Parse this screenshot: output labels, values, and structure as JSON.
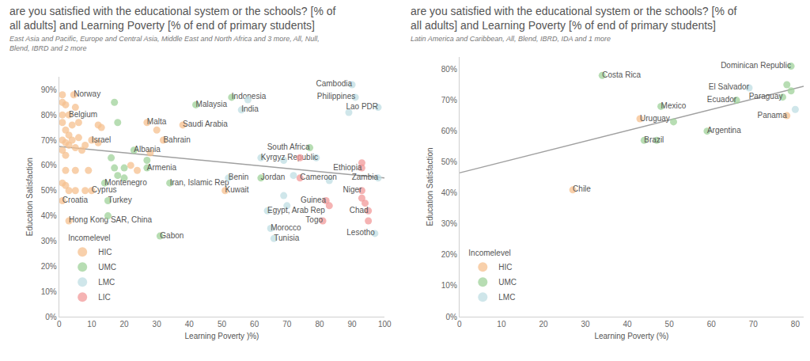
{
  "chart_data": [
    {
      "type": "scatter",
      "title": "are you satisfied with the educational system or the schools? [% of\nall adults] and Learning Poverty [% of end of primary students]",
      "subtitle": "East Asia and Pacific, Europe and Central Asia, Middle East and North Africa and 3 more, All, Null,\nBlend, IBRD and 2 more",
      "x_label": "Learning Poverty )%)",
      "y_label": "Education Satisfaction",
      "xlim": [
        0,
        100
      ],
      "xticks": [
        0,
        10,
        20,
        30,
        40,
        50,
        60,
        70,
        80,
        90,
        100
      ],
      "ylim": [
        0,
        95
      ],
      "yticks": [
        {
          "value": 0,
          "label": "0%"
        },
        {
          "value": 10,
          "label": "10%"
        },
        {
          "value": 20,
          "label": "20%"
        },
        {
          "value": 30,
          "label": "30%"
        },
        {
          "value": 40,
          "label": "40%"
        },
        {
          "value": 50,
          "label": "50%"
        },
        {
          "value": 60,
          "label": "60%"
        },
        {
          "value": 70,
          "label": "70%"
        },
        {
          "value": 80,
          "label": "80%"
        },
        {
          "value": 90,
          "label": "90%"
        }
      ],
      "grid": false,
      "marker": "circle",
      "legend": "bottom left",
      "legend_title": "Incomelevel",
      "series": [
        {
          "name": "HIC",
          "color": "#f5c08f",
          "x": [
            4.5,
            1,
            2,
            5,
            1,
            1,
            4,
            3,
            1,
            6,
            2,
            3,
            1,
            2,
            3,
            4,
            5,
            6,
            7,
            8,
            10,
            12,
            12,
            13,
            1,
            2,
            2,
            5,
            9,
            1,
            2,
            3,
            8,
            5,
            10,
            1,
            3,
            27,
            22,
            24,
            32,
            30,
            38,
            28,
            51
          ],
          "values": [
            88,
            88,
            84,
            83,
            80,
            77,
            76,
            80,
            85,
            77,
            74,
            72,
            70,
            69,
            68,
            70,
            67,
            71,
            66,
            68,
            70,
            69,
            76,
            75,
            66,
            64,
            58,
            58,
            58,
            53,
            52,
            50,
            50,
            50,
            50,
            46,
            38,
            77,
            60,
            58,
            70,
            74,
            76,
            65,
            50
          ],
          "labels": [
            "Norway",
            null,
            null,
            null,
            null,
            null,
            null,
            "Belgium",
            null,
            null,
            null,
            null,
            null,
            null,
            null,
            null,
            null,
            null,
            null,
            null,
            "Israel",
            null,
            null,
            null,
            null,
            null,
            null,
            null,
            null,
            null,
            null,
            null,
            null,
            null,
            "Cyprus",
            "Croatia",
            "Hong Kong SAR, China",
            "Malta",
            null,
            null,
            "Bahrain",
            null,
            "Saudi Arabia",
            null,
            "Kuwait"
          ]
        },
        {
          "name": "UMC",
          "color": "#9fd29a",
          "x": [
            17,
            18,
            23,
            16,
            17,
            20,
            14,
            15,
            15,
            42,
            27,
            27,
            34,
            31,
            53,
            62,
            77,
            20,
            18
          ],
          "values": [
            85,
            77,
            66,
            63,
            59,
            59,
            53,
            46,
            40,
            84,
            62,
            59,
            53,
            32,
            87,
            55,
            67,
            55,
            56
          ],
          "labels": [
            null,
            null,
            "Albania",
            null,
            null,
            null,
            "Montenegro",
            "Turkey",
            null,
            "Malaysia",
            null,
            "Armenia",
            "Iran, Islamic Rep",
            "Gabon",
            "Indonesia",
            "Jordan",
            "South Africa",
            null,
            null
          ]
        },
        {
          "name": "LMC",
          "color": "#bfdde3",
          "x": [
            56,
            58,
            90,
            91,
            98,
            89,
            62,
            69,
            72,
            69,
            70,
            64,
            65,
            66,
            52,
            83,
            98,
            97,
            79
          ],
          "values": [
            82,
            86,
            92,
            87,
            83,
            81,
            63,
            62,
            56,
            48,
            44,
            42,
            35,
            31,
            55,
            54,
            55,
            33,
            63
          ],
          "labels": [
            "India",
            null,
            "Cambodia",
            "Philippines",
            "Lao PDR",
            null,
            "Kyrgyz Republic",
            null,
            null,
            null,
            null,
            "Egypt, Arab Rep",
            "Morocco",
            "Tunisia",
            "Benin",
            null,
            "Zambia",
            "Lesotho",
            null
          ]
        },
        {
          "name": "LIC",
          "color": "#f29a9a",
          "x": [
            74,
            74,
            93,
            93,
            93,
            82,
            83,
            81,
            93,
            94,
            95,
            95
          ],
          "values": [
            55,
            63,
            59,
            61,
            50,
            46,
            44,
            38,
            47,
            45,
            42,
            38
          ],
          "labels": [
            "Cameroon",
            null,
            "Ethiopia",
            null,
            "Niger",
            "Guinea",
            null,
            "Togo",
            null,
            null,
            "Chad",
            null
          ]
        }
      ],
      "trend_line": {
        "color": "#a0a0a0",
        "x": [
          0,
          100
        ],
        "values": [
          67.5,
          55
        ]
      }
    },
    {
      "type": "scatter",
      "title": "are you satisfied with the educational system or the schools? [% of\nall adults] and Learning Poverty [% of end of primary students]",
      "subtitle": "Latin America and Caribbean, All, Blend, IBRD, IDA and 1 more",
      "x_label": "Learning Poverty (%)",
      "y_label": "Education Satisfaction",
      "xlim": [
        0,
        82
      ],
      "xticks": [
        0,
        10,
        20,
        30,
        40,
        50,
        60,
        70,
        80
      ],
      "ylim": [
        0,
        84
      ],
      "yticks": [
        {
          "value": 0,
          "label": "0%"
        },
        {
          "value": 10,
          "label": "10%"
        },
        {
          "value": 20,
          "label": "20%"
        },
        {
          "value": 30,
          "label": "30%"
        },
        {
          "value": 40,
          "label": "40%"
        },
        {
          "value": 50,
          "label": "50%"
        },
        {
          "value": 60,
          "label": "60%"
        },
        {
          "value": 70,
          "label": "70%"
        },
        {
          "value": 80,
          "label": "80%"
        }
      ],
      "grid": false,
      "marker": "circle",
      "legend": "bottom left",
      "legend_title": "Incomelevel",
      "series": [
        {
          "name": "HIC",
          "color": "#f5c08f",
          "x": [
            27,
            43,
            78
          ],
          "values": [
            41,
            64,
            65
          ],
          "labels": [
            "Chile",
            "Uruguay",
            "Panama"
          ]
        },
        {
          "name": "UMC",
          "color": "#9fd29a",
          "x": [
            34,
            48,
            51,
            44,
            47,
            59,
            66,
            79,
            77,
            78,
            79
          ],
          "values": [
            78,
            68,
            63,
            57,
            57,
            60,
            70,
            81,
            71,
            75,
            73
          ],
          "labels": [
            "Costa Rica",
            "Mexico",
            null,
            "Brazil",
            null,
            "Argentina",
            "Ecuador",
            "Dominican Republic",
            "Paraguay",
            null,
            null
          ]
        },
        {
          "name": "LMC",
          "color": "#bfdde3",
          "x": [
            69,
            80
          ],
          "values": [
            74,
            67
          ],
          "labels": [
            "El Salvador",
            null
          ]
        }
      ],
      "trend_line": {
        "color": "#a0a0a0",
        "x": [
          0,
          82
        ],
        "values": [
          46.5,
          74.5
        ]
      }
    }
  ]
}
